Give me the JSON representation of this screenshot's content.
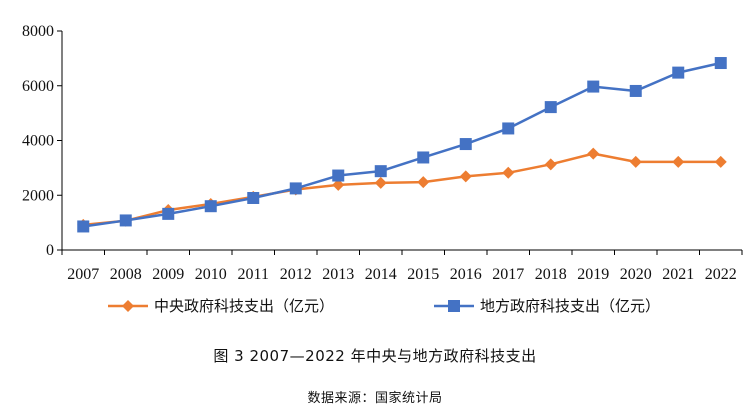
{
  "chart_data": {
    "type": "line",
    "title": "",
    "xlabel": "",
    "ylabel": "",
    "x": [
      "2007",
      "2008",
      "2009",
      "2010",
      "2011",
      "2012",
      "2013",
      "2014",
      "2015",
      "2016",
      "2017",
      "2018",
      "2019",
      "2020",
      "2021",
      "2022"
    ],
    "ylim": [
      0,
      8000
    ],
    "yticks": [
      "0",
      "2000",
      "4000",
      "6000",
      "8000"
    ],
    "grid": false,
    "legend_position": "bottom",
    "series": [
      {
        "name": "中央政府科技支出（亿元）",
        "color": "#ED7D31",
        "marker": "diamond",
        "values": [
          920,
          1070,
          1460,
          1680,
          1940,
          2210,
          2380,
          2450,
          2480,
          2690,
          2820,
          3130,
          3520,
          3220,
          3220,
          3220
        ]
      },
      {
        "name": "地方政府科技支出（亿元）",
        "color": "#4472C4",
        "marker": "square",
        "values": [
          860,
          1080,
          1320,
          1600,
          1900,
          2250,
          2720,
          2880,
          3380,
          3870,
          4440,
          5220,
          5970,
          5810,
          6480,
          6830
        ]
      }
    ]
  },
  "caption": "图 3  2007—2022 年中央与地方政府科技支出",
  "source": "数据来源：国家统计局"
}
